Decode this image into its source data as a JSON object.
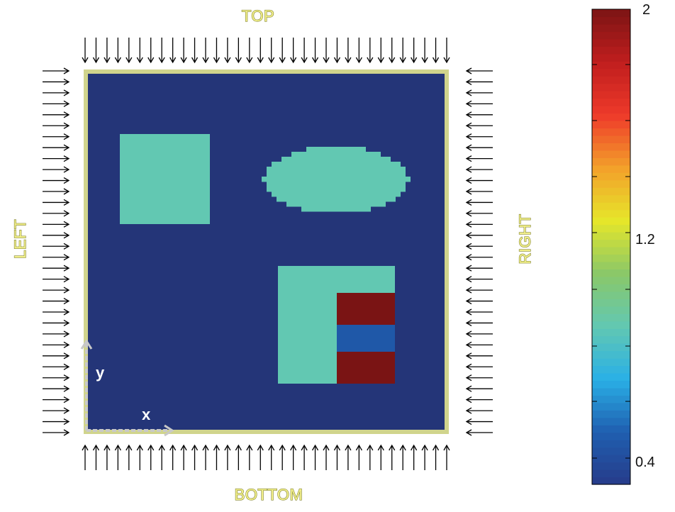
{
  "boundaries": {
    "top": "TOP",
    "bottom": "BOTTOM",
    "left": "LEFT",
    "right": "RIGHT"
  },
  "axes": {
    "x": "x",
    "y": "y"
  },
  "colorbar": {
    "max_label": "2",
    "mid_label": "1.2",
    "min_label": "0.4",
    "stops": [
      "#263c8a",
      "#1f5fb0",
      "#2ab0e6",
      "#62c8b2",
      "#8ac868",
      "#e6e62a",
      "#f3a02a",
      "#ee3a2a",
      "#c01e1e",
      "#7c1414"
    ]
  },
  "colors": {
    "background": "#243578",
    "inclusion": "#62c8b2",
    "high": "#7a1414",
    "low": "#1f58a8",
    "border": "#d0d48c",
    "axis_arrow": "#c8c8c8"
  }
}
